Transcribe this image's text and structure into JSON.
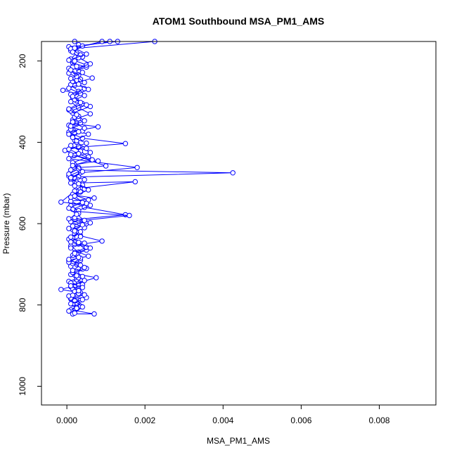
{
  "chart_data": {
    "type": "line",
    "title": "ATOM1 Southbound MSA_PM1_AMS",
    "xlabel": "MSA_PM1_AMS",
    "ylabel": "Pressure (mbar)",
    "xlim": [
      -0.00065,
      0.00945
    ],
    "ylim": [
      1046,
      152
    ],
    "y_reversed": true,
    "x_ticks": [
      "0.000",
      "0.002",
      "0.004",
      "0.006",
      "0.008"
    ],
    "x_tick_values": [
      0,
      0.002,
      0.004,
      0.006,
      0.008
    ],
    "y_ticks": [
      "200",
      "400",
      "600",
      "800",
      "1000"
    ],
    "y_tick_values": [
      200,
      400,
      600,
      800,
      1000
    ],
    "grid": false,
    "legend": "none",
    "series": [
      {
        "color": "#0000ff",
        "marker": "open-circle",
        "points": [
          [
            0.0002,
            152
          ],
          [
            0.0003,
            160
          ],
          [
            0.0001,
            175
          ],
          [
            0.0004,
            190
          ],
          [
            0.00015,
            205
          ],
          [
            0.0005,
            215
          ],
          [
            5e-05,
            230
          ],
          [
            0.00035,
            245
          ],
          [
            0.0002,
            260
          ],
          [
            -0.0001,
            272
          ],
          [
            0.00045,
            285
          ],
          [
            0.0001,
            300
          ],
          [
            0.0003,
            315
          ],
          [
            0.0006,
            330
          ],
          [
            0.00015,
            345
          ],
          [
            0.00025,
            355
          ],
          [
            0.0008,
            362
          ],
          [
            5e-05,
            375
          ],
          [
            0.0004,
            390
          ],
          [
            0.0015,
            403
          ],
          [
            0.0003,
            412
          ],
          [
            -5e-05,
            420
          ],
          [
            0.0002,
            432
          ],
          [
            0.001,
            458
          ],
          [
            0.0003,
            462
          ],
          [
            0.0001,
            468
          ],
          [
            0.00425,
            475
          ],
          [
            0.0003,
            485
          ],
          [
            0.0001,
            500
          ],
          [
            0.00175,
            497
          ],
          [
            0.0004,
            512
          ],
          [
            0.0002,
            530
          ],
          [
            0.0007,
            537
          ],
          [
            0.0001,
            545
          ],
          [
            0.00045,
            560
          ],
          [
            0.0015,
            578
          ],
          [
            0.0002,
            590
          ],
          [
            0.0005,
            600
          ],
          [
            0.00015,
            615
          ],
          [
            0.00035,
            630
          ],
          [
            0.0009,
            643
          ],
          [
            0.0001,
            655
          ],
          [
            0.0003,
            670
          ],
          [
            0.00055,
            680
          ],
          [
            5e-05,
            690
          ],
          [
            0.00025,
            700
          ],
          [
            0.0004,
            712
          ],
          [
            0.00015,
            722
          ],
          [
            0.00075,
            733
          ],
          [
            0.0003,
            745
          ],
          [
            0.0001,
            755
          ],
          [
            -0.00015,
            762
          ],
          [
            0.00035,
            770
          ],
          [
            0.0005,
            782
          ],
          [
            0.0002,
            792
          ],
          [
            0.0003,
            800
          ],
          [
            0.0001,
            812
          ],
          [
            0.0007,
            822
          ],
          [
            0.00015,
            822
          ]
        ]
      },
      {
        "color": "#0000ff",
        "marker": "open-circle",
        "points": [
          [
            0.0013,
            152
          ],
          [
            5e-05,
            165
          ],
          [
            0.00025,
            180
          ],
          [
            0.0001,
            195
          ],
          [
            0.0005,
            210
          ],
          [
            0.0002,
            225
          ],
          [
            0.00065,
            242
          ],
          [
            0.0001,
            258
          ],
          [
            0.0003,
            275
          ],
          [
            0.00015,
            290
          ],
          [
            0.0004,
            305
          ],
          [
            5e-05,
            320
          ],
          [
            0.0002,
            338
          ],
          [
            0.00035,
            352
          ],
          [
            0.0001,
            368
          ],
          [
            0.00055,
            380
          ],
          [
            0.0002,
            395
          ],
          [
            0.0003,
            410
          ],
          [
            0.0006,
            425
          ],
          [
            5e-05,
            440
          ],
          [
            0.0018,
            462
          ],
          [
            0.00035,
            475
          ],
          [
            0.0001,
            490
          ],
          [
            0.0004,
            505
          ],
          [
            0.0002,
            520
          ],
          [
            -0.00015,
            547
          ],
          [
            0.0006,
            555
          ],
          [
            0.00025,
            570
          ],
          [
            0.0016,
            580
          ],
          [
            0.0001,
            595
          ],
          [
            0.00045,
            610
          ],
          [
            0.0002,
            625
          ],
          [
            5e-05,
            638
          ],
          [
            0.0003,
            650
          ],
          [
            0.0005,
            665
          ],
          [
            0.00015,
            678
          ],
          [
            0.00035,
            690
          ],
          [
            0.0001,
            705
          ],
          [
            0.00025,
            718
          ],
          [
            0.0004,
            730
          ],
          [
            5e-05,
            742
          ],
          [
            0.0003,
            752
          ],
          [
            0.0002,
            762
          ],
          [
            0.00045,
            775
          ],
          [
            0.0001,
            785
          ],
          [
            0.00025,
            795
          ],
          [
            0.00035,
            803
          ],
          [
            5e-05,
            815
          ]
        ]
      },
      {
        "color": "#0000ff",
        "marker": "open-circle",
        "points": [
          [
            0.00225,
            152
          ],
          [
            0.0001,
            170
          ],
          [
            0.00035,
            185
          ],
          [
            0.0002,
            200
          ],
          [
            5e-05,
            218
          ],
          [
            0.0003,
            235
          ],
          [
            0.00015,
            250
          ],
          [
            0.00045,
            268
          ],
          [
            0.0001,
            282
          ],
          [
            0.00025,
            298
          ],
          [
            0.0006,
            312
          ],
          [
            0.00015,
            328
          ],
          [
            0.0003,
            342
          ],
          [
            5e-05,
            358
          ],
          [
            0.0004,
            372
          ],
          [
            0.00015,
            386
          ],
          [
            0.00025,
            400
          ],
          [
            0.0005,
            415
          ],
          [
            0.0001,
            430
          ],
          [
            0.0008,
            446
          ],
          [
            0.0002,
            455
          ],
          [
            0.00035,
            470
          ],
          [
            5e-05,
            483
          ],
          [
            0.00025,
            498
          ],
          [
            0.00045,
            515
          ],
          [
            0.00015,
            528
          ],
          [
            0.00055,
            542
          ],
          [
            0.0001,
            556
          ],
          [
            0.0003,
            568
          ],
          [
            0.0002,
            585
          ],
          [
            0.0006,
            598
          ],
          [
            5e-05,
            612
          ],
          [
            0.0003,
            622
          ],
          [
            0.00015,
            635
          ],
          [
            0.00045,
            648
          ],
          [
            0.0001,
            660
          ],
          [
            0.00025,
            675
          ],
          [
            0.00035,
            685
          ],
          [
            0.00015,
            698
          ],
          [
            0.0005,
            710
          ],
          [
            0.0001,
            725
          ],
          [
            0.00025,
            738
          ],
          [
            0.0004,
            750
          ],
          [
            0.00015,
            760
          ],
          [
            0.0003,
            772
          ],
          [
            0.0001,
            783
          ],
          [
            0.0002,
            790
          ],
          [
            0.0004,
            805
          ],
          [
            0.0002,
            820
          ]
        ]
      },
      {
        "color": "#0000ff",
        "marker": "open-circle",
        "points": [
          [
            0.0011,
            152
          ],
          [
            0.0004,
            163
          ],
          [
            0.00015,
            178
          ],
          [
            0.0003,
            192
          ],
          [
            0.0006,
            207
          ],
          [
            0.0001,
            222
          ],
          [
            0.00025,
            238
          ],
          [
            0.00045,
            253
          ],
          [
            5e-05,
            267
          ],
          [
            0.00035,
            280
          ],
          [
            0.0002,
            295
          ],
          [
            0.0005,
            308
          ],
          [
            0.0001,
            323
          ],
          [
            0.0003,
            336
          ],
          [
            0.00015,
            350
          ],
          [
            0.00045,
            365
          ],
          [
            5e-05,
            380
          ],
          [
            0.00025,
            396
          ],
          [
            0.0001,
            408
          ],
          [
            0.00035,
            422
          ],
          [
            0.00055,
            436
          ],
          [
            0.00015,
            450
          ],
          [
            0.0003,
            465
          ],
          [
            5e-05,
            478
          ],
          [
            0.00045,
            492
          ],
          [
            0.0002,
            507
          ],
          [
            0.00035,
            522
          ],
          [
            0.0001,
            535
          ],
          [
            0.0005,
            550
          ],
          [
            0.00015,
            565
          ],
          [
            0.0003,
            575
          ],
          [
            5e-05,
            588
          ],
          [
            0.0004,
            603
          ],
          [
            0.0002,
            618
          ],
          [
            0.00035,
            632
          ],
          [
            0.0001,
            645
          ],
          [
            0.0005,
            658
          ],
          [
            0.0002,
            672
          ],
          [
            0.0003,
            683
          ],
          [
            5e-05,
            695
          ],
          [
            0.00045,
            708
          ],
          [
            0.00015,
            720
          ],
          [
            0.0003,
            733
          ],
          [
            0.0001,
            746
          ],
          [
            0.0004,
            757
          ],
          [
            0.0002,
            767
          ],
          [
            5e-05,
            778
          ],
          [
            0.00035,
            788
          ],
          [
            0.00015,
            798
          ],
          [
            0.00025,
            806
          ]
        ]
      },
      {
        "color": "#0000ff",
        "marker": "open-circle",
        "points": [
          [
            0.0009,
            152
          ],
          [
            0.0002,
            168
          ],
          [
            0.0005,
            183
          ],
          [
            5e-05,
            198
          ],
          [
            0.00025,
            213
          ],
          [
            0.0004,
            228
          ],
          [
            0.0001,
            243
          ],
          [
            0.0003,
            257
          ],
          [
            0.00055,
            270
          ],
          [
            0.00015,
            287
          ],
          [
            0.00035,
            302
          ],
          [
            5e-05,
            318
          ],
          [
            0.00025,
            332
          ],
          [
            0.00045,
            347
          ],
          [
            0.0001,
            360
          ],
          [
            0.0003,
            374
          ],
          [
            0.00015,
            388
          ],
          [
            0.0005,
            402
          ],
          [
            5e-05,
            417
          ],
          [
            0.0003,
            428
          ],
          [
            0.00065,
            443
          ],
          [
            0.00015,
            457
          ],
          [
            0.0004,
            472
          ],
          [
            0.0001,
            487
          ],
          [
            0.0003,
            502
          ],
          [
            0.00055,
            517
          ],
          [
            0.0002,
            532
          ],
          [
            0.0004,
            548
          ],
          [
            5e-05,
            562
          ],
          [
            0.00025,
            577
          ],
          [
            0.00045,
            592
          ],
          [
            0.00015,
            606
          ],
          [
            0.00035,
            620
          ],
          [
            0.0001,
            633
          ],
          [
            0.0003,
            646
          ],
          [
            0.0006,
            660
          ],
          [
            0.0002,
            673
          ],
          [
            5e-05,
            688
          ],
          [
            0.00035,
            702
          ],
          [
            0.00015,
            715
          ],
          [
            0.00025,
            728
          ],
          [
            0.00045,
            740
          ],
          [
            0.0001,
            753
          ],
          [
            0.0003,
            765
          ],
          [
            0.00015,
            776
          ],
          [
            0.0004,
            787
          ],
          [
            0.0001,
            797
          ],
          [
            0.00025,
            808
          ]
        ]
      }
    ]
  }
}
